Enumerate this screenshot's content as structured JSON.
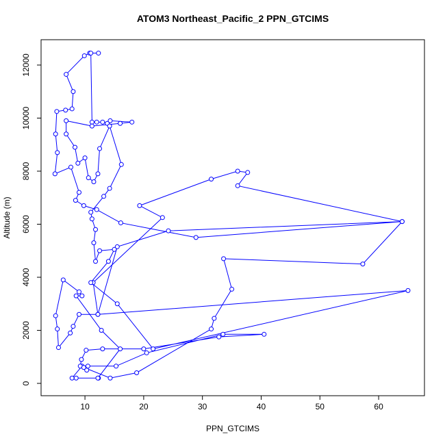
{
  "chart_data": {
    "type": "line",
    "title": "ATOM3 Northeast_Pacific_2 PPN_GTCIMS",
    "x_label": "PPN_GTCIMS",
    "y_label": "Altitude (m)",
    "color": "#0000ff",
    "markers": true,
    "xlim": [
      2.53,
      67.8
    ],
    "ylim": [
      -465,
      12955
    ],
    "xticks": [
      10,
      20,
      30,
      40,
      50,
      60
    ],
    "yticks": [
      0,
      2000,
      4000,
      6000,
      8000,
      10000,
      12000
    ],
    "x": [
      12.3,
      8.5,
      7.8,
      9.5,
      10.5,
      15.3,
      20.5,
      33.5,
      40.5,
      32.8,
      20.0,
      13.0,
      10.2,
      9.4,
      9.2,
      10.3,
      9.8,
      14.3,
      18.8,
      31.5,
      32.0,
      35.0,
      33.6,
      57.3,
      64.0,
      24.2,
      15.5,
      12.2,
      11.4,
      23.2,
      19.3,
      31.5,
      36.0,
      37.7,
      36.0,
      64.0,
      28.9,
      16.1,
      12.0,
      9.8,
      8.4,
      9.0,
      7.6,
      4.9,
      5.3,
      5.0,
      5.2,
      6.7,
      7.8,
      8.0,
      6.8,
      9.9,
      10.8,
      12.3,
      11.0,
      11.2,
      12.0,
      13.0,
      13.8,
      14.3,
      18.0,
      16.0,
      11.2,
      6.8,
      6.8,
      8.3,
      8.8,
      10.0,
      10.6,
      11.5,
      12.2,
      12.5,
      14.2,
      16.2,
      14.2,
      13.2,
      11.0,
      11.2,
      11.8,
      11.5,
      11.8,
      12.5,
      15.0,
      14.0,
      11.0,
      15.5,
      21.6,
      65.0,
      12.2,
      9.0,
      8.0,
      7.5,
      5.5,
      5.3,
      5.0,
      6.3,
      9.0,
      9.5,
      8.5,
      12.8,
      16.0,
      12.2
    ],
    "values": [
      200,
      200,
      200,
      650,
      650,
      650,
      1150,
      1850,
      1850,
      1750,
      1300,
      1300,
      1250,
      900,
      650,
      500,
      600,
      200,
      400,
      2050,
      2450,
      3550,
      4700,
      4500,
      6100,
      5750,
      5150,
      2600,
      3800,
      6250,
      6700,
      7700,
      8000,
      7950,
      7450,
      6100,
      5500,
      6050,
      6550,
      6700,
      6900,
      7200,
      8150,
      7900,
      8700,
      9400,
      10250,
      10300,
      10350,
      11000,
      11650,
      12350,
      12450,
      12450,
      12450,
      9850,
      9850,
      9850,
      9800,
      9900,
      9850,
      9800,
      9700,
      9900,
      9400,
      8900,
      8300,
      8500,
      7750,
      7600,
      7900,
      8850,
      9700,
      8250,
      7350,
      7050,
      6450,
      6200,
      5800,
      5300,
      4600,
      5000,
      5050,
      4600,
      3800,
      3000,
      1300,
      3500,
      2600,
      2600,
      2150,
      1900,
      1350,
      2050,
      2550,
      3900,
      3450,
      3300,
      3300,
      2000,
      1300,
      200
    ]
  }
}
